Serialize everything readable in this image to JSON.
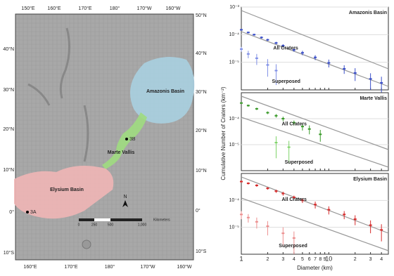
{
  "map": {
    "top_labels": [
      "150°E",
      "160°E",
      "170°E",
      "180°",
      "170°W",
      "160°W"
    ],
    "bottom_labels": [
      "160°E",
      "170°E",
      "180°",
      "170°W",
      "160°W"
    ],
    "left_labels": [
      "40°N",
      "30°N",
      "20°N",
      "10°N",
      "0°",
      "10°S"
    ],
    "right_labels": [
      "50°N",
      "40°N",
      "30°N",
      "20°N",
      "10°N",
      "0°",
      "10°S"
    ],
    "regions": [
      "Amazonis Basin",
      "Marte Vallis",
      "Elysium Basin"
    ],
    "points": [
      "3B",
      "3A"
    ],
    "north": "N",
    "scale_title": "Kilometers",
    "scale_ticks": [
      "0",
      "250",
      "500",
      "1,000"
    ]
  },
  "chart_data": [
    {
      "type": "scatter",
      "title": "Amazonis Basin",
      "ylim": [
        1e-06,
        0.001
      ],
      "xlim": [
        1,
        48
      ],
      "log": true,
      "yticks": [
        {
          "value": 0.001,
          "label": "10⁻³"
        },
        {
          "value": 0.0001,
          "label": "10⁻⁴"
        },
        {
          "value": 1e-05,
          "label": "10⁻⁵"
        }
      ],
      "series": [
        {
          "name": "All Craters",
          "color": "#3a4fc9",
          "x": [
            1,
            1.2,
            1.4,
            1.7,
            2,
            2.5,
            3,
            4,
            5,
            7,
            10,
            15,
            20,
            30,
            40
          ],
          "values": [
            0.00015,
            0.00012,
            0.0001,
            7.9e-05,
            6.5e-05,
            5e-05,
            4e-05,
            2.8e-05,
            2.2e-05,
            1.5e-05,
            9.5e-06,
            5.8e-06,
            4.1e-06,
            2.5e-06,
            1.8e-06
          ],
          "errors": [
            1e-05,
            9e-06,
            8e-06,
            7e-06,
            6e-06,
            5e-06,
            5e-06,
            4e-06,
            4e-06,
            3e-06,
            3e-06,
            2e-06,
            2e-06,
            1.5e-06,
            1.2e-06
          ]
        },
        {
          "name": "Superposed",
          "color": "#7f8fe6",
          "x": [
            1,
            1.2,
            1.5,
            2,
            2.5
          ],
          "values": [
            3e-05,
            2e-05,
            1.4e-05,
            8e-06,
            5e-06
          ],
          "errors": [
            6e-06,
            6e-06,
            6e-06,
            5e-06,
            3.5e-06
          ]
        }
      ]
    },
    {
      "type": "scatter",
      "title": "Marte Vallis",
      "ylim": [
        1e-06,
        0.001
      ],
      "xlim": [
        1,
        48
      ],
      "log": true,
      "ylabel": "Cumulative Number of Craters (km⁻²)",
      "yticks": [
        {
          "value": 0.0001,
          "label": "10⁻⁴"
        },
        {
          "value": 1e-05,
          "label": "10⁻⁵"
        }
      ],
      "series": [
        {
          "name": "All Craters",
          "color": "#3a9a2a",
          "x": [
            1,
            1.2,
            1.5,
            2,
            2.5,
            3,
            4,
            5,
            6,
            8
          ],
          "values": [
            0.0004,
            0.00032,
            0.00024,
            0.00017,
            0.00013,
            0.0001,
            7e-05,
            5e-05,
            4e-05,
            2.5e-05
          ],
          "errors": [
            3e-05,
            3e-05,
            2.5e-05,
            2e-05,
            2e-05,
            2e-05,
            1.5e-05,
            1.5e-05,
            1.5e-05,
            1.2e-05
          ]
        },
        {
          "name": "Superposed",
          "color": "#7fd36a",
          "x": [
            2.5,
            3.5
          ],
          "values": [
            1.2e-05,
            8e-06
          ],
          "errors": [
            9e-06,
            6e-06
          ]
        }
      ]
    },
    {
      "type": "scatter",
      "title": "Elysium Basin",
      "ylim": [
        1e-06,
        0.001
      ],
      "xlim": [
        1,
        48
      ],
      "log": true,
      "xlabel": "Diameter (km)",
      "yticks": [
        {
          "value": 0.0001,
          "label": "10⁻⁴"
        },
        {
          "value": 1e-05,
          "label": "10⁻⁵"
        }
      ],
      "xticks": [
        1,
        2,
        3,
        4,
        5,
        6,
        7,
        8,
        9,
        10,
        {
          "value": 20,
          "label": "2"
        },
        {
          "value": 30,
          "label": "3"
        },
        {
          "value": 40,
          "label": "4"
        }
      ],
      "series": [
        {
          "name": "All Craters",
          "color": "#d62a2a",
          "x": [
            1,
            1.2,
            1.5,
            2,
            2.5,
            3,
            4,
            5,
            7,
            10,
            15,
            20,
            30,
            40
          ],
          "values": [
            0.0005,
            0.00043,
            0.00036,
            0.00028,
            0.00022,
            0.00018,
            0.00013,
            0.0001,
            7e-05,
            4.5e-05,
            3e-05,
            2e-05,
            1.2e-05,
            8e-06
          ],
          "errors": [
            4e-05,
            4e-05,
            4e-05,
            3e-05,
            3e-05,
            3e-05,
            2e-05,
            2e-05,
            2e-05,
            1.5e-05,
            1e-05,
            8e-06,
            6e-06,
            5e-06
          ]
        },
        {
          "name": "Superposed",
          "color": "#ec8f8f",
          "x": [
            1,
            1.2,
            1.5,
            2,
            3,
            4
          ],
          "values": [
            3e-05,
            2.3e-05,
            1.6e-05,
            1.1e-05,
            6e-06,
            4e-06
          ],
          "errors": [
            1e-05,
            8e-06,
            7e-06,
            6e-06,
            4e-06,
            3e-06
          ]
        }
      ]
    }
  ]
}
